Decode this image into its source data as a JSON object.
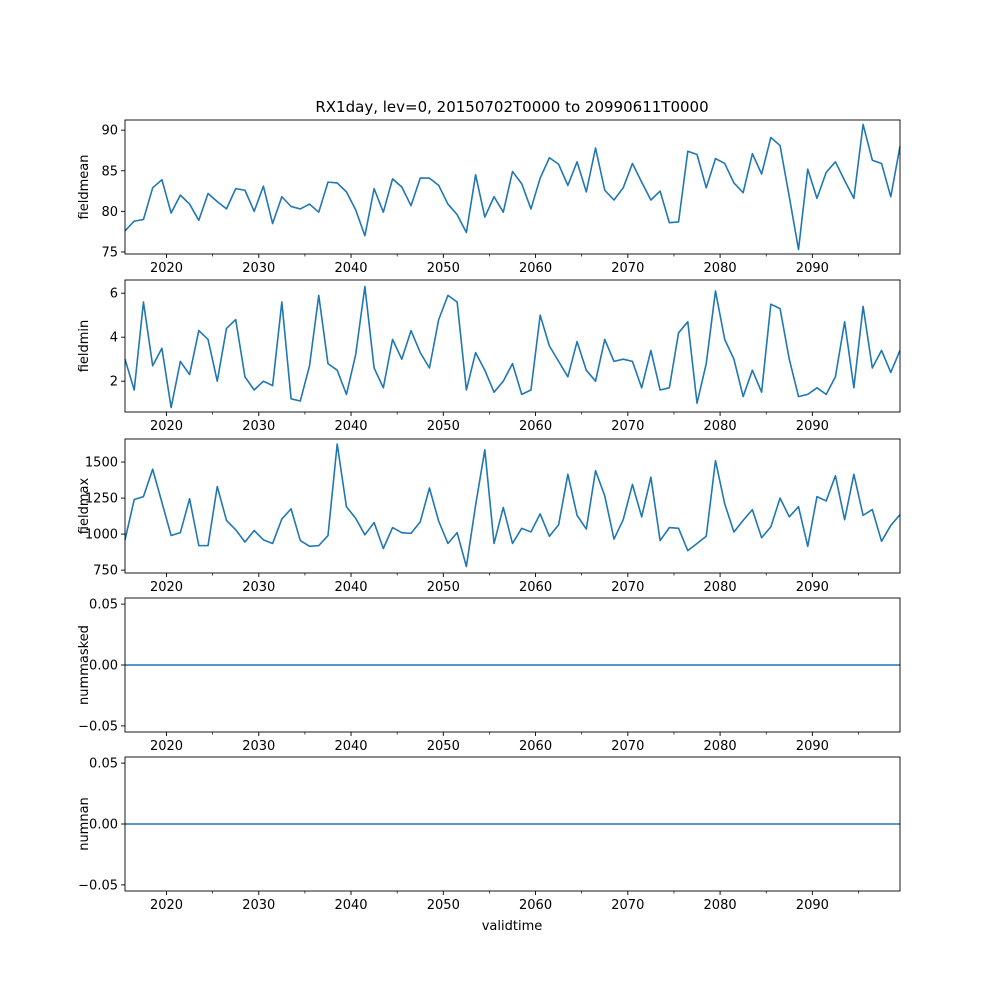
{
  "chart_data": {
    "type": "line",
    "title": "RX1day, lev=0, 20150702T0000 to 20990611T0000",
    "xlabel": "validtime",
    "line_color": "#1f77b4",
    "x": [
      2015.5,
      2016.5,
      2017.5,
      2018.5,
      2019.5,
      2020.5,
      2021.5,
      2022.5,
      2023.5,
      2024.5,
      2025.5,
      2026.5,
      2027.5,
      2028.5,
      2029.5,
      2030.5,
      2031.5,
      2032.5,
      2033.5,
      2034.5,
      2035.5,
      2036.5,
      2037.5,
      2038.5,
      2039.5,
      2040.5,
      2041.5,
      2042.5,
      2043.5,
      2044.5,
      2045.5,
      2046.5,
      2047.5,
      2048.5,
      2049.5,
      2050.5,
      2051.5,
      2052.5,
      2053.5,
      2054.5,
      2055.5,
      2056.5,
      2057.5,
      2058.5,
      2059.5,
      2060.5,
      2061.5,
      2062.5,
      2063.5,
      2064.5,
      2065.5,
      2066.5,
      2067.5,
      2068.5,
      2069.5,
      2070.5,
      2071.5,
      2072.5,
      2073.5,
      2074.5,
      2075.5,
      2076.5,
      2077.5,
      2078.5,
      2079.5,
      2080.5,
      2081.5,
      2082.5,
      2083.5,
      2084.5,
      2085.5,
      2086.5,
      2087.5,
      2088.5,
      2089.5,
      2090.5,
      2091.5,
      2092.5,
      2093.5,
      2094.5,
      2095.5,
      2096.5,
      2097.5,
      2098.5,
      2099.5
    ],
    "xlim": [
      2015.5,
      2099.5
    ],
    "xticks": [
      2020,
      2030,
      2040,
      2050,
      2060,
      2070,
      2080,
      2090
    ],
    "minor_xticks": [
      2015,
      2025,
      2035,
      2045,
      2055,
      2065,
      2075,
      2085,
      2095
    ],
    "panels": [
      {
        "name": "fieldmean",
        "ylabel": "fieldmean",
        "ylim": [
          74.75,
          91.25
        ],
        "yticks": [
          75,
          80,
          85,
          90
        ],
        "ytick_labels": [
          "75",
          "80",
          "85",
          "90"
        ],
        "values": [
          77.6,
          78.8,
          79.0,
          82.9,
          83.9,
          79.8,
          82.0,
          80.9,
          78.9,
          82.2,
          81.2,
          80.3,
          82.8,
          82.6,
          80.0,
          83.1,
          78.5,
          81.8,
          80.6,
          80.3,
          80.9,
          79.9,
          83.6,
          83.5,
          82.4,
          80.2,
          77.0,
          82.8,
          79.9,
          84.0,
          83.0,
          80.7,
          84.1,
          84.1,
          83.2,
          80.9,
          79.6,
          77.4,
          84.5,
          79.3,
          81.8,
          79.9,
          84.9,
          83.4,
          80.3,
          84.1,
          86.6,
          85.8,
          83.2,
          86.1,
          82.4,
          87.8,
          82.6,
          81.4,
          82.9,
          85.9,
          83.6,
          81.4,
          82.5,
          78.6,
          78.7,
          87.4,
          87.0,
          82.9,
          86.5,
          85.9,
          83.5,
          82.3,
          87.1,
          84.6,
          89.1,
          88.1,
          81.8,
          75.3,
          85.2,
          81.6,
          84.8,
          86.1,
          83.8,
          81.6,
          90.7,
          86.3,
          85.9,
          81.8,
          88.0
        ]
      },
      {
        "name": "fieldmin",
        "ylabel": "fieldmin",
        "ylim": [
          0.6,
          6.6
        ],
        "yticks": [
          2,
          4,
          6
        ],
        "ytick_labels": [
          "2",
          "4",
          "6"
        ],
        "values": [
          3.0,
          1.6,
          5.6,
          2.7,
          3.5,
          0.8,
          2.9,
          2.3,
          4.3,
          3.9,
          2.0,
          4.4,
          4.8,
          2.2,
          1.6,
          2.0,
          1.8,
          5.6,
          1.2,
          1.1,
          2.7,
          5.9,
          2.8,
          2.5,
          1.4,
          3.2,
          6.3,
          2.6,
          1.7,
          3.9,
          3.0,
          4.3,
          3.3,
          2.6,
          4.8,
          5.9,
          5.6,
          1.6,
          3.3,
          2.5,
          1.5,
          2.0,
          2.8,
          1.4,
          1.6,
          5.0,
          3.6,
          2.9,
          2.2,
          3.8,
          2.5,
          2.0,
          3.9,
          2.9,
          3.0,
          2.9,
          1.7,
          3.4,
          1.6,
          1.7,
          4.2,
          4.7,
          1.0,
          2.8,
          6.1,
          3.9,
          3.0,
          1.3,
          2.5,
          1.5,
          5.5,
          5.3,
          3.0,
          1.3,
          1.4,
          1.7,
          1.4,
          2.2,
          4.7,
          1.7,
          5.4,
          2.6,
          3.4,
          2.4,
          3.4
        ]
      },
      {
        "name": "fieldmax",
        "ylabel": "fieldmax",
        "ylim": [
          730,
          1660
        ],
        "yticks": [
          750,
          1000,
          1250,
          1500
        ],
        "ytick_labels": [
          "750",
          "1000",
          "1250",
          "1500"
        ],
        "values": [
          960,
          1240,
          1260,
          1450,
          1220,
          990,
          1010,
          1245,
          920,
          920,
          1330,
          1095,
          1030,
          945,
          1025,
          960,
          935,
          1105,
          1175,
          955,
          915,
          920,
          990,
          1625,
          1190,
          1110,
          995,
          1080,
          900,
          1045,
          1010,
          1005,
          1085,
          1320,
          1090,
          935,
          1010,
          775,
          1200,
          1585,
          935,
          1185,
          935,
          1040,
          1015,
          1140,
          985,
          1065,
          1415,
          1130,
          1035,
          1440,
          1265,
          965,
          1100,
          1345,
          1120,
          1395,
          955,
          1045,
          1040,
          885,
          935,
          985,
          1510,
          1210,
          1015,
          1095,
          1170,
          975,
          1050,
          1250,
          1120,
          1190,
          915,
          1260,
          1230,
          1405,
          1100,
          1415,
          1130,
          1170,
          950,
          1060,
          1135
        ]
      },
      {
        "name": "nummasked",
        "ylabel": "nummasked",
        "ylim": [
          -0.055,
          0.055
        ],
        "yticks": [
          -0.05,
          0.0,
          0.05
        ],
        "ytick_labels": [
          "−0.05",
          "0.00",
          "0.05"
        ],
        "constant": 0
      },
      {
        "name": "numnan",
        "ylabel": "numnan",
        "ylim": [
          -0.055,
          0.055
        ],
        "yticks": [
          -0.05,
          0.0,
          0.05
        ],
        "ytick_labels": [
          "−0.05",
          "0.00",
          "0.05"
        ],
        "constant": 0
      }
    ]
  }
}
